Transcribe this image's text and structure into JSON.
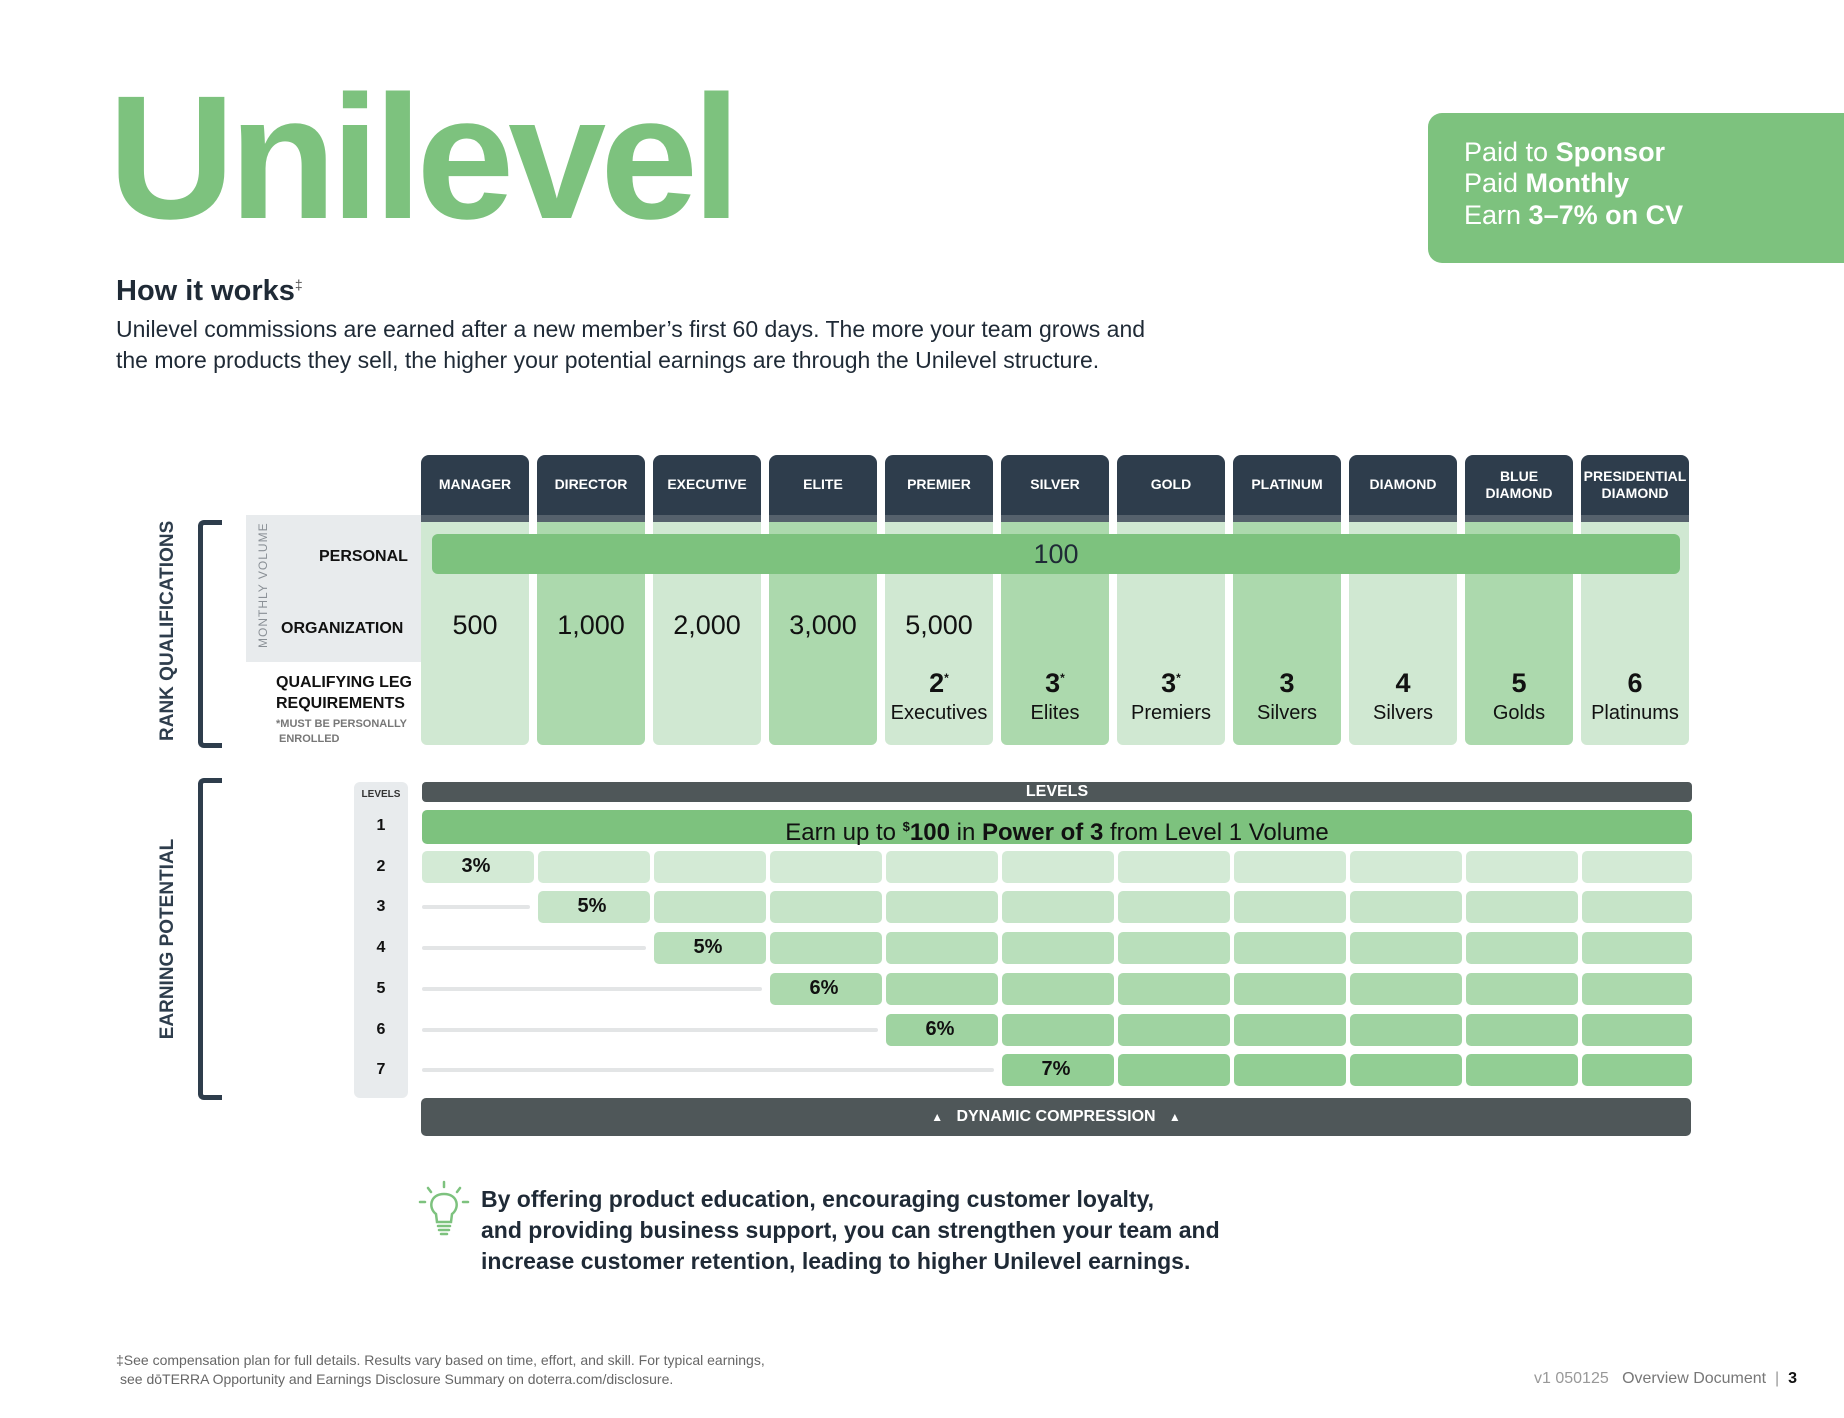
{
  "title": "Unilevel",
  "callout": {
    "line1_pre": "Paid to ",
    "line1_bold": "Sponsor",
    "line2_pre": "Paid ",
    "line2_bold": "Monthly",
    "line3_pre": "Earn ",
    "line3_bold": "3–7% on CV"
  },
  "how_it_works": {
    "heading": "How it works",
    "mark": "‡",
    "line1": "Unilevel commissions are earned after a new member’s first 60 days. The more your team grows and",
    "line2": "the more products they sell, the higher your potential earnings are through the Unilevel structure."
  },
  "ranks": [
    "MANAGER",
    "DIRECTOR",
    "EXECUTIVE",
    "ELITE",
    "PREMIER",
    "SILVER",
    "GOLD",
    "PLATINUM",
    "DIAMOND",
    "BLUE DIAMOND",
    "PRESIDENTIAL DIAMOND"
  ],
  "side_labels": {
    "rank_qualifications": "RANK QUALIFICATIONS",
    "earning_potential": "EARNING POTENTIAL",
    "monthly_volume": "MONTHLY VOLUME"
  },
  "rows": {
    "personal": "PERSONAL",
    "organization": "ORGANIZATION",
    "qualifying_1": "QUALIFYING LEG",
    "qualifying_2": "REQUIREMENTS",
    "note_1": "*MUST BE PERSONALLY",
    "note_2": "ENROLLED"
  },
  "personal_volume": "100",
  "organization_volume": [
    "500",
    "1,000",
    "2,000",
    "3,000",
    "5,000"
  ],
  "qualifying": [
    {
      "num": "2",
      "star": "*",
      "label": "Executives"
    },
    {
      "num": "3",
      "star": "*",
      "label": "Elites"
    },
    {
      "num": "3",
      "star": "*",
      "label": "Premiers"
    },
    {
      "num": "3",
      "star": "",
      "label": "Silvers"
    },
    {
      "num": "4",
      "star": "",
      "label": "Silvers"
    },
    {
      "num": "5",
      "star": "",
      "label": "Golds"
    },
    {
      "num": "6",
      "star": "",
      "label": "Platinums"
    }
  ],
  "levels": {
    "header": "LEVELS",
    "col_header": "LEVELS",
    "numbers": [
      "1",
      "2",
      "3",
      "4",
      "5",
      "6",
      "7"
    ],
    "level1_pre": "Earn up to ",
    "level1_sup": "$",
    "level1_amt": "100",
    "level1_mid": " in ",
    "level1_bold": "Power of 3",
    "level1_post": " from Level 1 Volume",
    "percentages": [
      "3%",
      "5%",
      "5%",
      "6%",
      "6%",
      "7%"
    ]
  },
  "compression": {
    "label": "DYNAMIC COMPRESSION",
    "arrow": "▲"
  },
  "tip": {
    "line1": "By offering product education, encouraging customer loyalty,",
    "line2": "and providing business support, you can strengthen your team and",
    "line3": "increase customer retention, leading to higher Unilevel earnings."
  },
  "footnote": {
    "line1": "‡See compensation plan for full details. Results vary based on time, effort, and skill. For typical earnings,",
    "line2": "see dōTERRA Opportunity and Earnings Disclosure Summary on doterra.com/disclosure."
  },
  "footer": {
    "version": "v1 050125",
    "doc": "Overview Document",
    "sep": "|",
    "page": "3"
  },
  "colors": {
    "green": "#7dc27e",
    "navy": "#2e3d4c",
    "light_green": "#d0e8d2",
    "mid_green": "#acd9ad",
    "dark_gray": "#4f5759"
  }
}
